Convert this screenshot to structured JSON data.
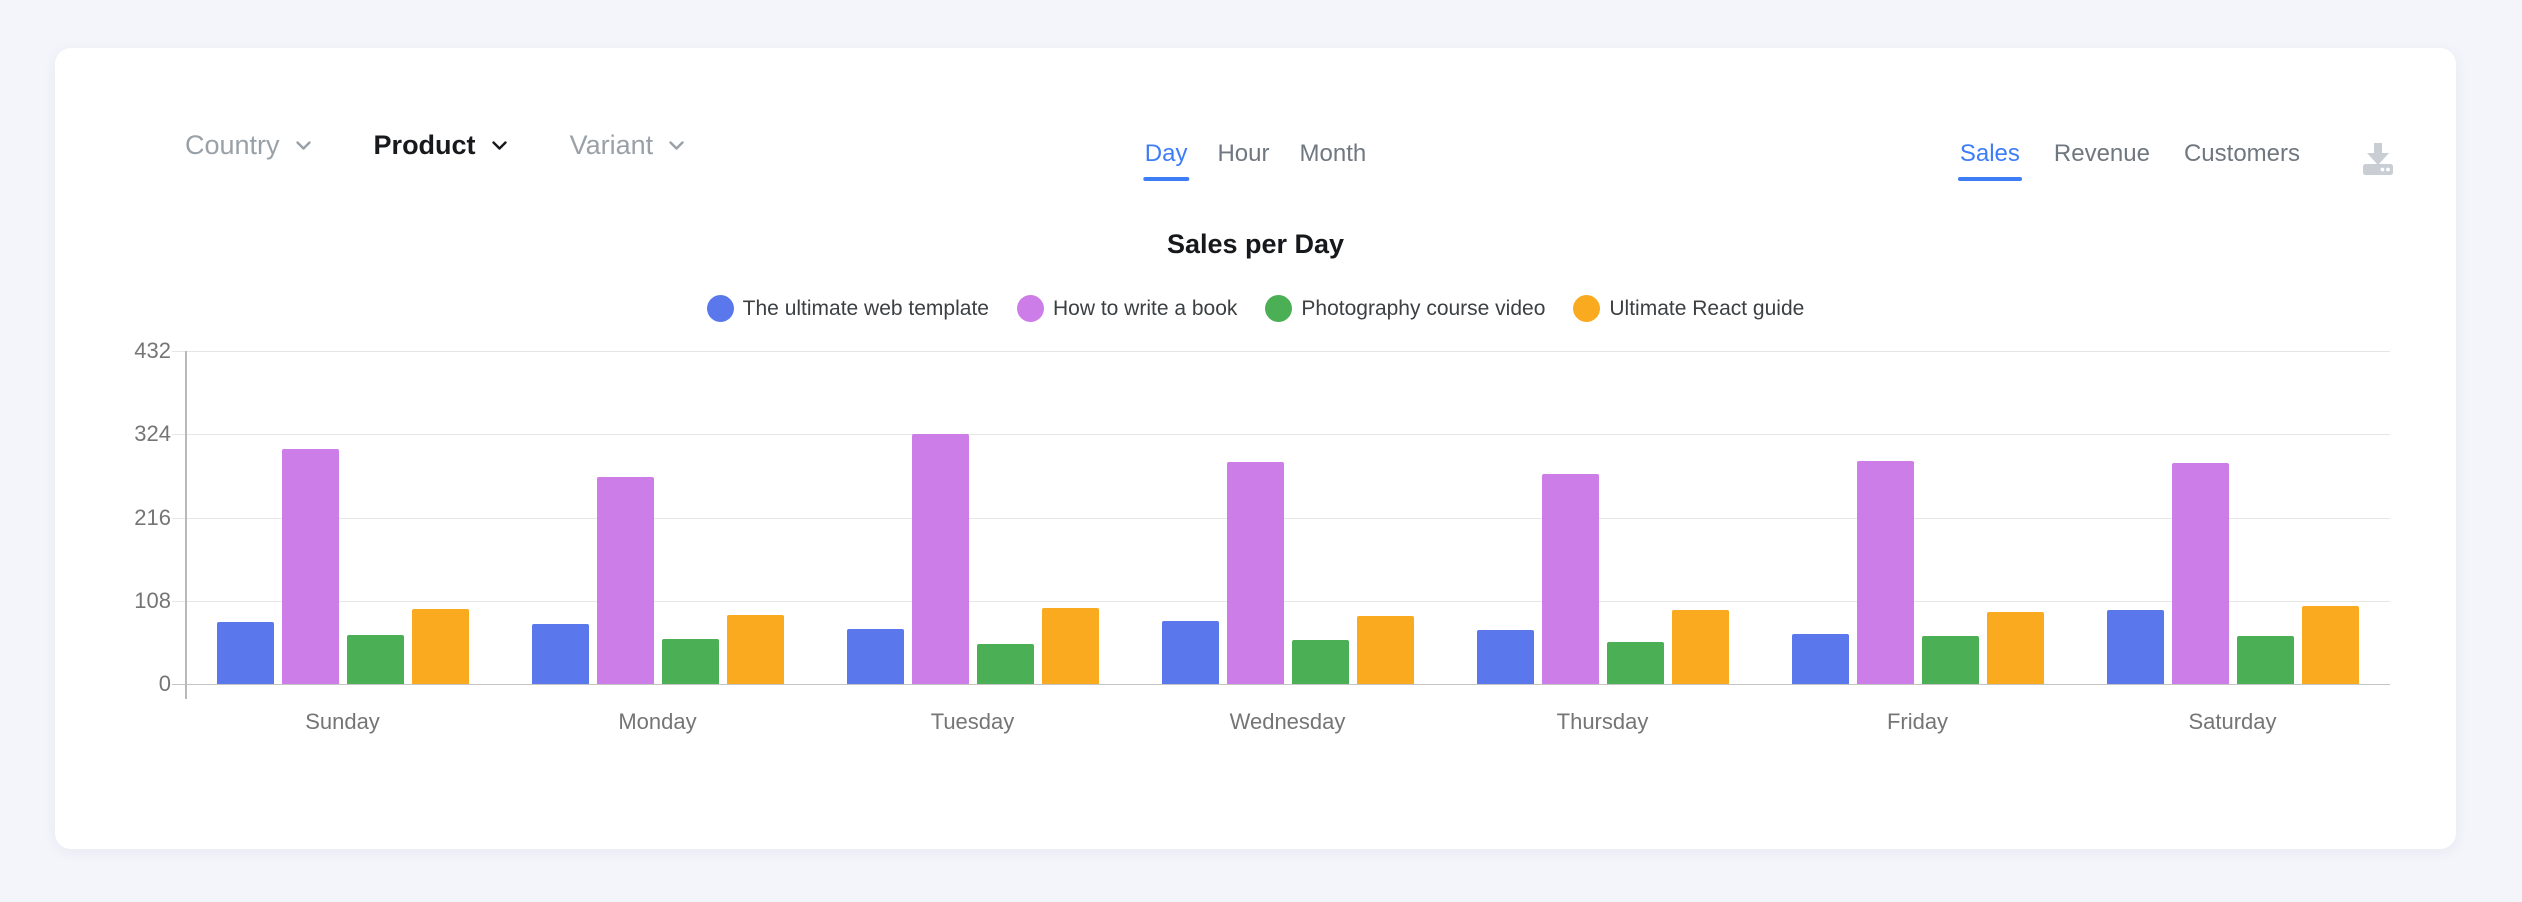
{
  "filters": [
    {
      "label": "Country",
      "active": false
    },
    {
      "label": "Product",
      "active": true
    },
    {
      "label": "Variant",
      "active": false
    }
  ],
  "time_tabs": [
    {
      "label": "Day",
      "active": true
    },
    {
      "label": "Hour",
      "active": false
    },
    {
      "label": "Month",
      "active": false
    }
  ],
  "metric_tabs": [
    {
      "label": "Sales",
      "active": true
    },
    {
      "label": "Revenue",
      "active": false
    },
    {
      "label": "Customers",
      "active": false
    }
  ],
  "toolbar": {
    "download_icon": "download-icon"
  },
  "colors": {
    "accent_blue": "#3D7DF5",
    "inactive_tab_gray": "#6F7780",
    "inactive_filter_gray": "#99A1A8",
    "active_filter_black": "#17191C",
    "axis_text_gray": "#757575",
    "gridline_gray": "#E6E6E6",
    "card_white": "#FFFFFF",
    "page_background": "#F4F5FB",
    "download_icon_gray": "#C9CDD4"
  },
  "chart_data": {
    "type": "bar",
    "title": "Sales per Day",
    "xlabel": "",
    "ylabel": "",
    "ylim": [
      0,
      432
    ],
    "yticks": [
      432,
      324,
      216,
      108,
      0
    ],
    "grid": true,
    "legend_position": "top",
    "categories": [
      "Sunday",
      "Monday",
      "Tuesday",
      "Wednesday",
      "Thursday",
      "Friday",
      "Saturday"
    ],
    "series": [
      {
        "name": "The ultimate web template",
        "color": "#5A78EB",
        "values": [
          80,
          78,
          72,
          82,
          70,
          65,
          96
        ]
      },
      {
        "name": "How to write a book",
        "color": "#CD7DE8",
        "values": [
          305,
          268,
          324,
          288,
          272,
          289,
          287
        ]
      },
      {
        "name": "Photography course video",
        "color": "#4BAF55",
        "values": [
          64,
          58,
          52,
          57,
          55,
          62,
          62
        ]
      },
      {
        "name": "Ultimate React guide",
        "color": "#FAAA1E",
        "values": [
          97,
          90,
          98,
          88,
          96,
          93,
          101
        ]
      }
    ]
  }
}
